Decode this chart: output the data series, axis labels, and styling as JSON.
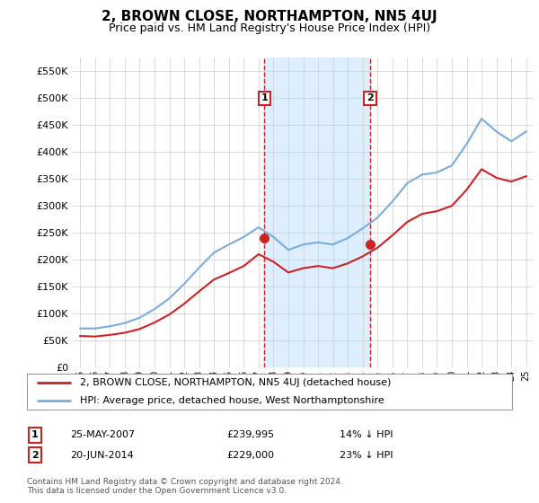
{
  "title": "2, BROWN CLOSE, NORTHAMPTON, NN5 4UJ",
  "subtitle": "Price paid vs. HM Land Registry's House Price Index (HPI)",
  "title_fontsize": 11,
  "subtitle_fontsize": 9,
  "background_color": "#ffffff",
  "plot_bg_color": "#ffffff",
  "grid_color": "#cccccc",
  "ylim": [
    0,
    575000
  ],
  "yticks": [
    0,
    50000,
    100000,
    150000,
    200000,
    250000,
    300000,
    350000,
    400000,
    450000,
    500000,
    550000
  ],
  "ytick_labels": [
    "£0",
    "£50K",
    "£100K",
    "£150K",
    "£200K",
    "£250K",
    "£300K",
    "£350K",
    "£400K",
    "£450K",
    "£500K",
    "£550K"
  ],
  "years": [
    1995,
    1996,
    1997,
    1998,
    1999,
    2000,
    2001,
    2002,
    2003,
    2004,
    2005,
    2006,
    2007,
    2008,
    2009,
    2010,
    2011,
    2012,
    2013,
    2014,
    2015,
    2016,
    2017,
    2018,
    2019,
    2020,
    2021,
    2022,
    2023,
    2024,
    2025
  ],
  "hpi_values": [
    72000,
    72000,
    76000,
    82000,
    92000,
    108000,
    128000,
    155000,
    185000,
    213000,
    228000,
    242000,
    260000,
    242000,
    218000,
    228000,
    232000,
    228000,
    240000,
    258000,
    278000,
    308000,
    342000,
    358000,
    362000,
    375000,
    415000,
    462000,
    438000,
    420000,
    438000
  ],
  "red_values": [
    58000,
    57000,
    60000,
    64000,
    71000,
    83000,
    98000,
    118000,
    141000,
    163000,
    175000,
    188000,
    210000,
    196000,
    176000,
    184000,
    188000,
    184000,
    193000,
    206000,
    222000,
    245000,
    270000,
    285000,
    290000,
    300000,
    330000,
    368000,
    352000,
    345000,
    355000
  ],
  "sale1_year": 2007.4,
  "sale1_value": 239995,
  "sale1_label": "1",
  "sale2_year": 2014.5,
  "sale2_value": 229000,
  "sale2_label": "2",
  "hpi_color": "#7aacdc",
  "red_color": "#cc2222",
  "sale_marker_color": "#cc2222",
  "sale_box_color": "#cc2222",
  "shade_color": "#ddeeff",
  "legend_line1": "2, BROWN CLOSE, NORTHAMPTON, NN5 4UJ (detached house)",
  "legend_line2": "HPI: Average price, detached house, West Northamptonshire",
  "info1_label": "1",
  "info1_date": "25-MAY-2007",
  "info1_price": "£239,995",
  "info1_pct": "14% ↓ HPI",
  "info2_label": "2",
  "info2_date": "20-JUN-2014",
  "info2_price": "£229,000",
  "info2_pct": "23% ↓ HPI",
  "footer": "Contains HM Land Registry data © Crown copyright and database right 2024.\nThis data is licensed under the Open Government Licence v3.0."
}
